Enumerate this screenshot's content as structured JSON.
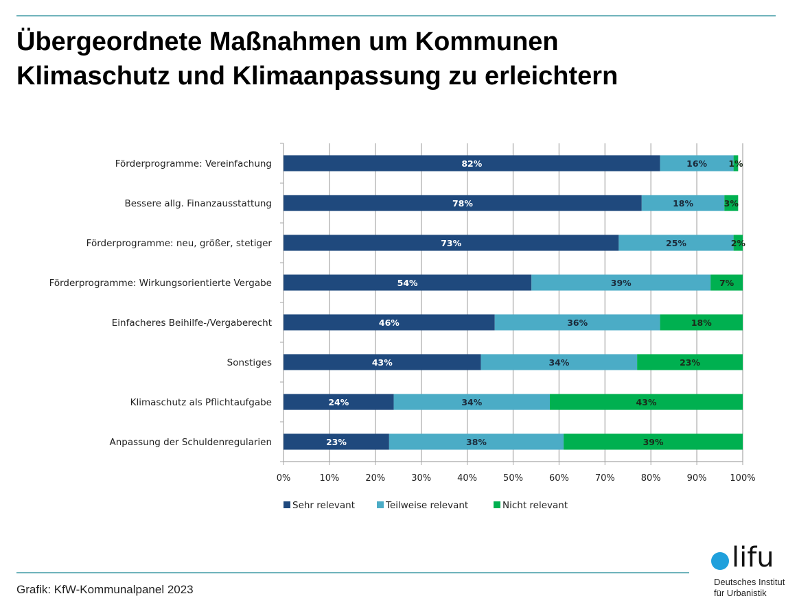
{
  "header": {
    "title_line1": "Übergeordnete Maßnahmen um Kommunen",
    "title_line2": "Klimaschutz und Klimaanpassung zu erleichtern"
  },
  "footer": {
    "source": "Grafik: KfW-Kommunalpanel 2023",
    "logo_word": "lifu",
    "logo_line1": "Deutsches Institut",
    "logo_line2": "für Urbanistik"
  },
  "colors": {
    "sehr": "#1f497d",
    "teilweise": "#4bacc6",
    "nicht": "#00b050",
    "grid": "#a6a6a6",
    "rule": "#6fb3bb",
    "logo_dot": "#1fa0dc"
  },
  "chart_data": {
    "type": "bar",
    "orientation": "horizontal",
    "stacked": true,
    "title": "Übergeordnete Maßnahmen um Kommunen Klimaschutz und Klimaanpassung zu erleichtern",
    "xlabel": "",
    "ylabel": "",
    "xlim": [
      0,
      100
    ],
    "x_ticks": [
      "0%",
      "10%",
      "20%",
      "30%",
      "40%",
      "50%",
      "60%",
      "70%",
      "80%",
      "90%",
      "100%"
    ],
    "grid": true,
    "legend_position": "bottom",
    "categories": [
      "Förderprogramme: Vereinfachung",
      "Bessere allg. Finanzausstattung",
      "Förderprogramme: neu, größer, stetiger",
      "Förderprogramme: Wirkungsorientierte Vergabe",
      "Einfacheres Beihilfe-/Vergaberecht",
      "Sonstiges",
      "Klimaschutz als Pflichtaufgabe",
      "Anpassung der Schuldenregularien"
    ],
    "series": [
      {
        "name": "Sehr relevant",
        "color": "#1f497d",
        "label_color": "#ffffff",
        "values": [
          82,
          78,
          73,
          54,
          46,
          43,
          24,
          23
        ]
      },
      {
        "name": "Teilweise relevant",
        "color": "#4bacc6",
        "label_color": "#1b2a3a",
        "values": [
          16,
          18,
          25,
          39,
          36,
          34,
          34,
          38
        ]
      },
      {
        "name": "Nicht relevant",
        "color": "#00b050",
        "label_color": "#1b2a1a",
        "values": [
          1,
          3,
          2,
          7,
          18,
          23,
          43,
          39
        ]
      }
    ],
    "value_suffix": "%"
  }
}
